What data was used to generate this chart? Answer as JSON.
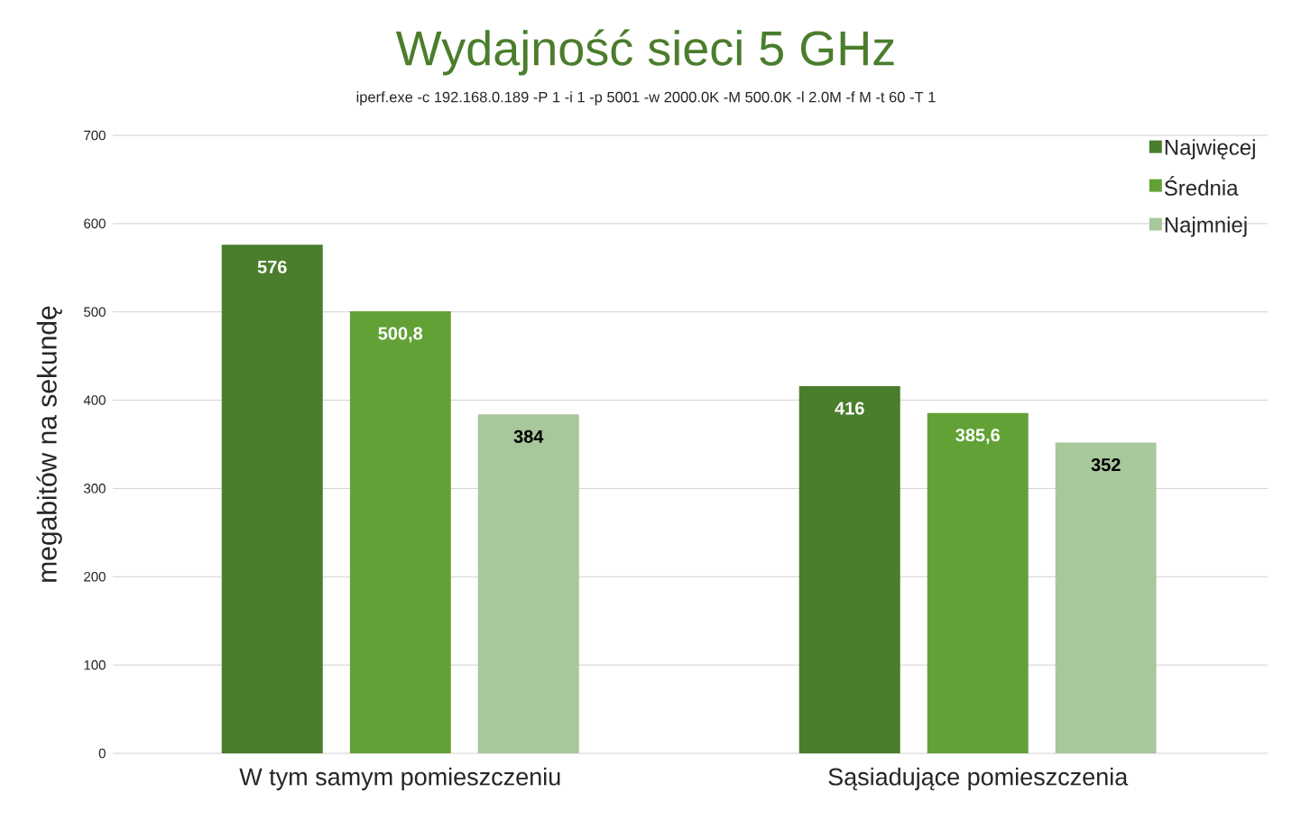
{
  "chart_data": {
    "type": "bar",
    "title": "Wydajność sieci 5 GHz",
    "subtitle": "iperf.exe -c 192.168.0.189 -P 1 -i 1 -p 5001 -w 2000.0K -M 500.0K -l 2.0M -f M -t 60 -T 1",
    "ylabel": "megabitów na sekundę",
    "categories": [
      "W tym samym pomieszczeniu",
      "Sąsiadujące pomieszczenia"
    ],
    "series": [
      {
        "name": "Najwięcej",
        "color": "#4a7d2c",
        "values": [
          576,
          416
        ],
        "value_labels": [
          "576",
          "416"
        ]
      },
      {
        "name": "Średnia",
        "color": "#62a136",
        "values": [
          500.8,
          385.6
        ],
        "value_labels": [
          "500,8",
          "385,6"
        ]
      },
      {
        "name": "Najmniej",
        "color": "#a8c79a",
        "values": [
          384,
          352
        ],
        "value_labels": [
          "384",
          "352"
        ]
      }
    ],
    "ylim": [
      0,
      700
    ],
    "yticks": [
      0,
      100,
      200,
      300,
      400,
      500,
      600,
      700
    ],
    "grid": "y",
    "legend": "top right"
  }
}
